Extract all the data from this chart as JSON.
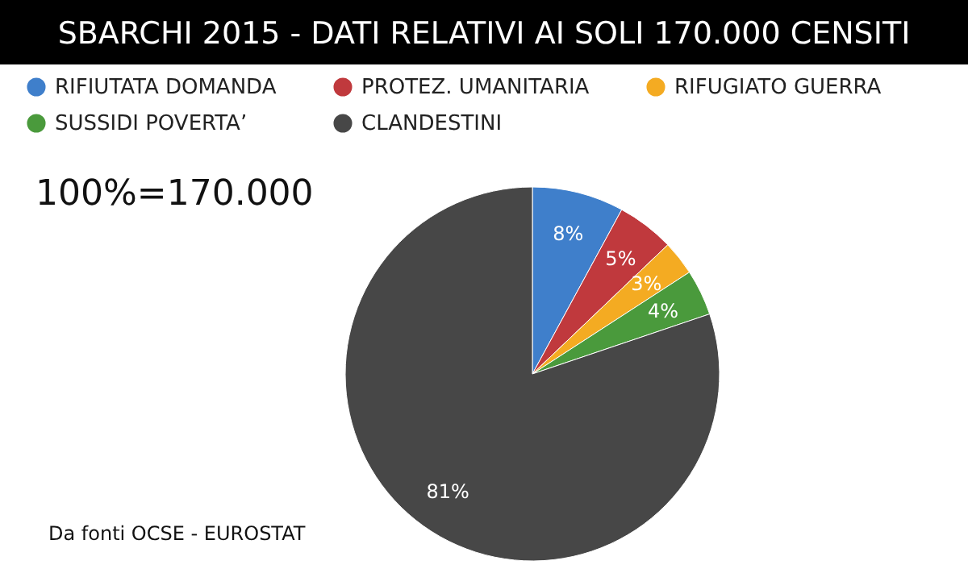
{
  "chart_data": {
    "type": "pie",
    "title": "SBARCHI 2015 - DATI RELATIVI AI SOLI 170.000 CENSITI",
    "categories": [
      "RIFIUTATA DOMANDA",
      "PROTEZ. UMANITARIA",
      "RIFUGIATO GUERRA",
      "SUSSIDI POVERTA’",
      "CLANDESTINI"
    ],
    "values": [
      8,
      5,
      3,
      4,
      81
    ],
    "colors": [
      "#3f7fcb",
      "#c0393d",
      "#f4ab22",
      "#4a9a3c",
      "#474747"
    ],
    "value_labels": [
      "8%",
      "5%",
      "3%",
      "4%",
      "81%"
    ],
    "legend": "top",
    "annotations": [
      "100%=170.000",
      "Da fonti OCSE  - EUROSTAT"
    ]
  }
}
